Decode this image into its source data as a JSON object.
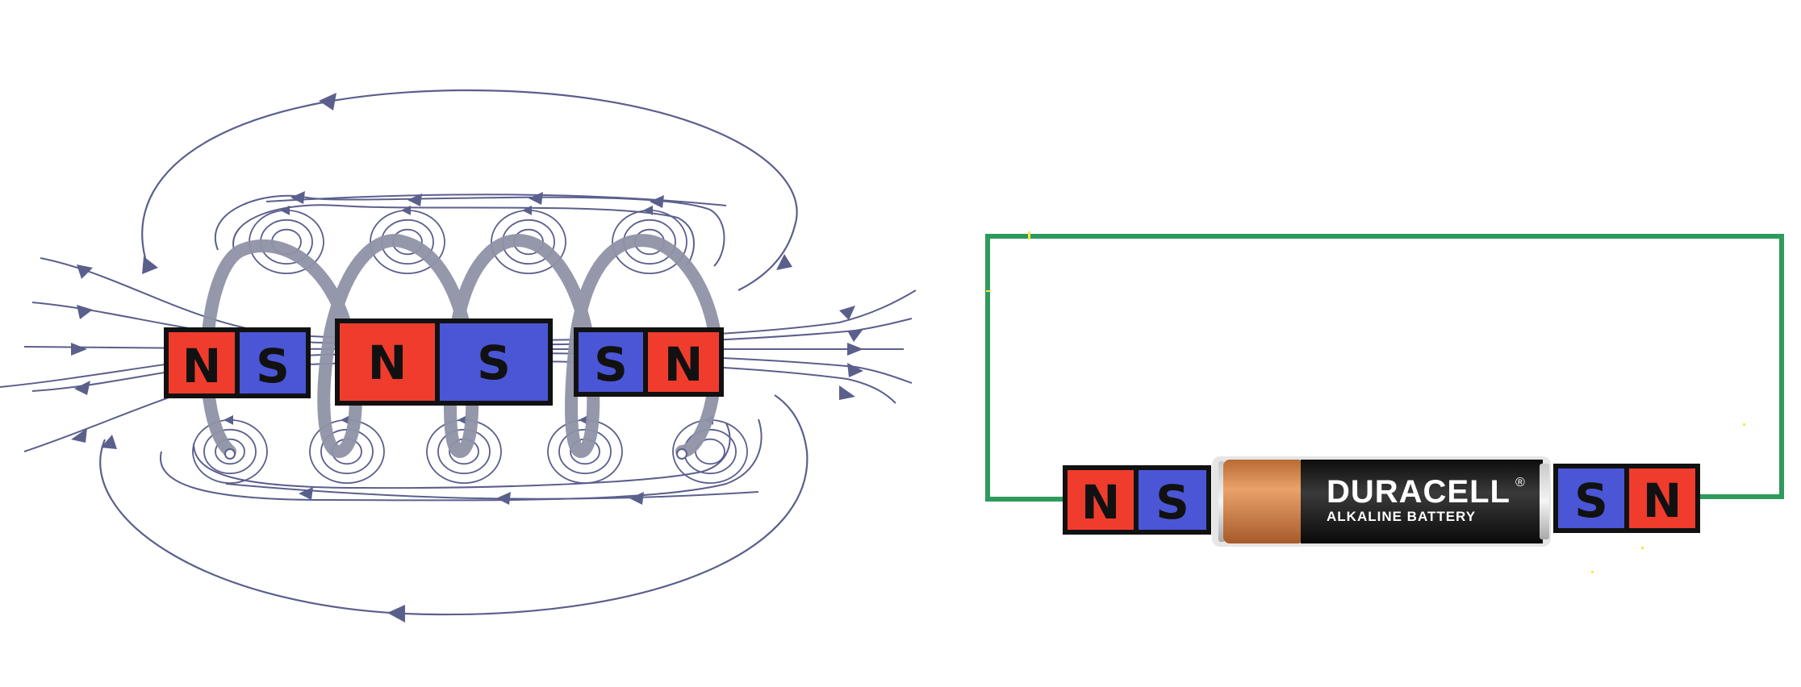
{
  "colors": {
    "north": "#f03c2c",
    "south": "#4a56d6",
    "outline": "#111111",
    "field_line": "#5b5f8c",
    "coil": "#8f92a6",
    "wire": "#2e9b5c",
    "battery_copper": "#d4874c",
    "battery_black": "#1e1e1e"
  },
  "solenoid_diagram": {
    "magnets": [
      {
        "name": "left-magnet",
        "left_pole": "N",
        "right_pole": "S"
      },
      {
        "name": "center-magnet",
        "left_pole": "N",
        "right_pole": "S"
      },
      {
        "name": "right-magnet",
        "left_pole": "S",
        "right_pole": "N"
      }
    ]
  },
  "battery_circuit": {
    "left_magnet": {
      "left_pole": "N",
      "right_pole": "S"
    },
    "right_magnet": {
      "left_pole": "S",
      "right_pole": "N"
    },
    "battery": {
      "brand": "DURACELL",
      "registered_mark": "®",
      "subtitle": "ALKALINE BATTERY"
    }
  }
}
